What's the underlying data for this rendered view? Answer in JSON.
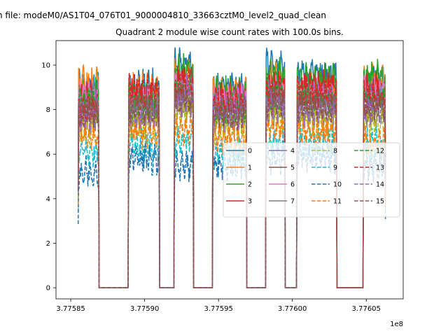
{
  "chart_data": {
    "type": "line",
    "suptitle": "n file: modeM0/AS1T04_076T01_9000004810_33663cztM0_level2_quad_clean",
    "title": "Quadrant 2 module wise count rates with 100.0s bins.",
    "xlabel": "",
    "ylabel": "",
    "x_offset_label": "1e8",
    "xlim": [
      3.77584,
      3.776075
    ],
    "ylim": [
      -0.5,
      11.1
    ],
    "x_ticks": [
      3.77585,
      3.7759,
      3.77595,
      3.776,
      3.77605
    ],
    "x_tick_labels": [
      "3.77585",
      "3.77590",
      "3.77595",
      "3.77600",
      "3.77605"
    ],
    "y_ticks": [
      0,
      2,
      4,
      6,
      8,
      10
    ],
    "y_tick_labels": [
      "0",
      "2",
      "4",
      "6",
      "8",
      "10"
    ],
    "grid": false,
    "legend_position": "center-right",
    "segments": [
      [
        3.775855,
        3.775869
      ],
      [
        3.775869,
        3.775889
      ],
      [
        3.775889,
        3.77591
      ],
      [
        3.77591,
        3.77592
      ],
      [
        3.77592,
        3.775933
      ],
      [
        3.775933,
        3.775946
      ],
      [
        3.775946,
        3.775969
      ],
      [
        3.775969,
        3.775982
      ],
      [
        3.775982,
        3.775995
      ],
      [
        3.775995,
        3.776003
      ],
      [
        3.776003,
        3.77603
      ],
      [
        3.77603,
        3.776048
      ],
      [
        3.776048,
        3.776063
      ]
    ],
    "series": [
      {
        "name": "0",
        "color": "#1f77b4",
        "dash": "solid",
        "levels": [
          9.0,
          9.1,
          10.1,
          8.9,
          10.0,
          9.5,
          9.2
        ]
      },
      {
        "name": "1",
        "color": "#ff7f0e",
        "dash": "solid",
        "levels": [
          9.2,
          8.9,
          9.6,
          8.7,
          9.4,
          9.0,
          9.3
        ]
      },
      {
        "name": "2",
        "color": "#2ca02c",
        "dash": "solid",
        "levels": [
          8.8,
          8.7,
          9.8,
          8.8,
          9.6,
          9.4,
          9.6
        ]
      },
      {
        "name": "3",
        "color": "#d62728",
        "dash": "solid",
        "levels": [
          8.5,
          8.6,
          9.2,
          8.5,
          9.0,
          9.0,
          8.9
        ]
      },
      {
        "name": "4",
        "color": "#9467bd",
        "dash": "solid",
        "levels": [
          8.2,
          8.3,
          8.9,
          8.3,
          8.6,
          8.5,
          8.5
        ]
      },
      {
        "name": "5",
        "color": "#8c564b",
        "dash": "solid",
        "levels": [
          8.0,
          8.0,
          8.6,
          8.0,
          8.4,
          8.3,
          8.2
        ]
      },
      {
        "name": "6",
        "color": "#e377c2",
        "dash": "solid",
        "levels": [
          8.6,
          8.4,
          9.0,
          8.4,
          8.8,
          8.7,
          8.8
        ]
      },
      {
        "name": "7",
        "color": "#7f7f7f",
        "dash": "solid",
        "levels": [
          7.6,
          7.7,
          8.2,
          7.5,
          8.0,
          7.8,
          7.8
        ]
      },
      {
        "name": "8",
        "color": "#bcbd22",
        "dash": "dashed",
        "levels": [
          7.2,
          7.4,
          7.9,
          7.2,
          7.7,
          7.5,
          7.5
        ]
      },
      {
        "name": "9",
        "color": "#17becf",
        "dash": "dashed",
        "levels": [
          6.2,
          6.4,
          6.6,
          6.1,
          6.6,
          6.5,
          6.4
        ]
      },
      {
        "name": "10",
        "color": "#1f77b4",
        "dash": "dashed",
        "levels": [
          5.2,
          5.8,
          5.5,
          5.5,
          5.8,
          5.9,
          5.5
        ]
      },
      {
        "name": "11",
        "color": "#ff7f0e",
        "dash": "dashed",
        "levels": [
          6.8,
          7.0,
          7.1,
          6.7,
          7.2,
          7.0,
          6.5
        ]
      },
      {
        "name": "12",
        "color": "#2ca02c",
        "dash": "dashed",
        "levels": [
          8.3,
          8.2,
          8.9,
          8.1,
          8.7,
          8.6,
          8.6
        ]
      },
      {
        "name": "13",
        "color": "#d62728",
        "dash": "dashed",
        "levels": [
          8.0,
          8.8,
          9.1,
          8.2,
          8.8,
          8.7,
          8.6
        ]
      },
      {
        "name": "14",
        "color": "#9467bd",
        "dash": "dashed",
        "levels": [
          7.8,
          7.9,
          8.4,
          7.8,
          8.2,
          8.0,
          8.0
        ]
      },
      {
        "name": "15",
        "color": "#8c564b",
        "dash": "dashed",
        "levels": [
          7.9,
          8.1,
          8.6,
          7.9,
          8.4,
          8.2,
          8.3
        ]
      }
    ]
  }
}
